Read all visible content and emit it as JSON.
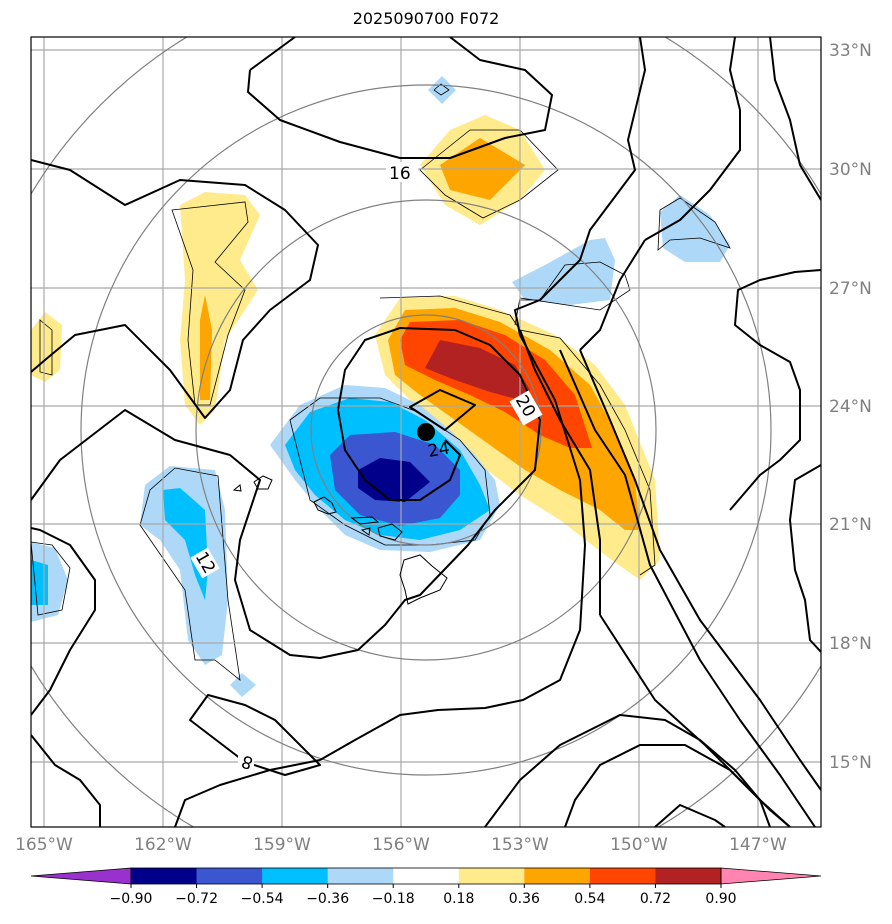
{
  "title": "2025090700 F072",
  "map": {
    "lat_labels": [
      "33°N",
      "30°N",
      "27°N",
      "24°N",
      "21°N",
      "18°N",
      "15°N"
    ],
    "lon_labels": [
      "165°W",
      "162°W",
      "159°W",
      "156°W",
      "153°W",
      "150°W",
      "147°W"
    ],
    "contour_labels": [
      "16",
      "20",
      "24",
      "12",
      "8"
    ],
    "grid_color": "#a9a9a9",
    "contour_color": "#000000"
  },
  "colorbar": {
    "ticks": [
      "−0.90",
      "−0.72",
      "−0.54",
      "−0.36",
      "−0.18",
      "0.18",
      "0.36",
      "0.54",
      "0.72",
      "0.90"
    ],
    "colors": [
      "#9932cc",
      "#00008b",
      "#3a56d0",
      "#00bfff",
      "#add8f7",
      "#ffffff",
      "#ffeb8c",
      "#ffa500",
      "#ff4500",
      "#b22222",
      "#ff85b0"
    ]
  }
}
